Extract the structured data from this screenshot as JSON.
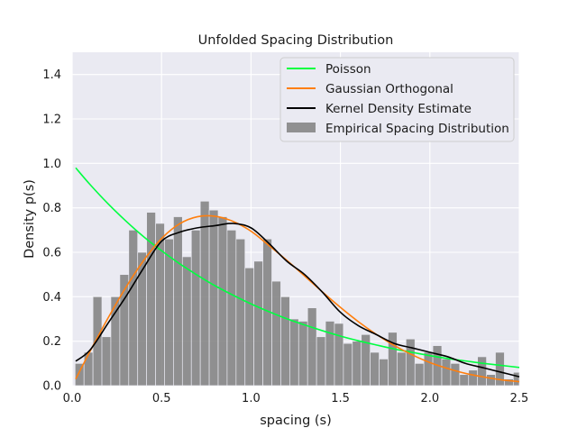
{
  "chart_data": {
    "type": "bar",
    "title": "Unfolded Spacing Distribution",
    "xlabel": "spacing (s)",
    "ylabel": "Density p(s)",
    "xlim": [
      0.0,
      2.5
    ],
    "ylim": [
      0.0,
      1.5
    ],
    "x_ticks": [
      "0.0",
      "0.5",
      "1.0",
      "1.5",
      "2.0",
      "2.5"
    ],
    "y_ticks": [
      "0.0",
      "0.2",
      "0.4",
      "0.6",
      "0.8",
      "1.0",
      "1.2",
      "1.4"
    ],
    "grid": true,
    "legend_position": "upper-right",
    "colors": {
      "poisson": "#00ff40",
      "goe": "#ff7f0e",
      "kde": "#000000",
      "histogram": "#808080",
      "plot_bg": "#eaeaf2",
      "grid": "#ffffff"
    },
    "legend": {
      "poisson": "Poisson",
      "goe": "Gaussian Orthogonal",
      "kde": "Kernel Density Estimate",
      "histogram": "Empirical Spacing Distribution"
    },
    "histogram": {
      "name": "Empirical Spacing Distribution",
      "bin_edges": [
        0.0165,
        0.0665,
        0.1165,
        0.1665,
        0.2165,
        0.2665,
        0.3165,
        0.3665,
        0.4165,
        0.4665,
        0.5165,
        0.5665,
        0.6165,
        0.6665,
        0.7165,
        0.7665,
        0.8165,
        0.8665,
        0.9165,
        0.9665,
        1.0165,
        1.0665,
        1.1165,
        1.1665,
        1.2165,
        1.2665,
        1.3165,
        1.3665,
        1.4165,
        1.4665,
        1.5165,
        1.5665,
        1.6165,
        1.6665,
        1.7165,
        1.7665,
        1.8165,
        1.8665,
        1.9165,
        1.9665,
        2.0165,
        2.0665,
        2.1165,
        2.1665,
        2.2165,
        2.2665,
        2.3165,
        2.3665,
        2.4165,
        2.4665,
        2.5165
      ],
      "values": [
        0.1,
        0.15,
        0.4,
        0.22,
        0.4,
        0.5,
        0.7,
        0.6,
        0.78,
        0.73,
        0.66,
        0.76,
        0.58,
        0.7,
        0.83,
        0.79,
        0.76,
        0.7,
        0.66,
        0.53,
        0.56,
        0.66,
        0.47,
        0.4,
        0.3,
        0.29,
        0.35,
        0.22,
        0.29,
        0.28,
        0.19,
        0.2,
        0.23,
        0.15,
        0.12,
        0.24,
        0.15,
        0.21,
        0.1,
        0.15,
        0.18,
        0.12,
        0.1,
        0.05,
        0.07,
        0.13,
        0.05,
        0.15,
        0.03,
        0.06
      ]
    },
    "series": [
      {
        "name": "Poisson",
        "x": [
          0.02,
          0.1,
          0.2,
          0.3,
          0.4,
          0.5,
          0.6,
          0.7,
          0.8,
          0.9,
          1.0,
          1.1,
          1.2,
          1.3,
          1.4,
          1.5,
          1.6,
          1.7,
          1.8,
          1.9,
          2.0,
          2.1,
          2.2,
          2.3,
          2.4,
          2.5
        ],
        "y": [
          0.98,
          0.905,
          0.819,
          0.741,
          0.67,
          0.607,
          0.549,
          0.497,
          0.449,
          0.407,
          0.368,
          0.333,
          0.301,
          0.273,
          0.247,
          0.223,
          0.202,
          0.183,
          0.165,
          0.15,
          0.135,
          0.122,
          0.111,
          0.1,
          0.091,
          0.082
        ]
      },
      {
        "name": "Gaussian Orthogonal",
        "x": [
          0.02,
          0.1,
          0.2,
          0.3,
          0.4,
          0.5,
          0.6,
          0.7,
          0.8,
          0.9,
          1.0,
          1.1,
          1.2,
          1.3,
          1.4,
          1.5,
          1.6,
          1.7,
          1.8,
          1.9,
          2.0,
          2.1,
          2.2,
          2.3,
          2.4,
          2.5
        ],
        "y": [
          0.03,
          0.154,
          0.303,
          0.441,
          0.563,
          0.662,
          0.728,
          0.76,
          0.762,
          0.739,
          0.695,
          0.631,
          0.564,
          0.493,
          0.421,
          0.352,
          0.288,
          0.231,
          0.181,
          0.139,
          0.104,
          0.077,
          0.055,
          0.039,
          0.026,
          0.018
        ]
      },
      {
        "name": "Kernel Density Estimate",
        "x": [
          0.02,
          0.1,
          0.2,
          0.3,
          0.4,
          0.5,
          0.6,
          0.7,
          0.8,
          0.9,
          1.0,
          1.1,
          1.2,
          1.3,
          1.4,
          1.5,
          1.6,
          1.7,
          1.8,
          1.9,
          2.0,
          2.1,
          2.2,
          2.3,
          2.4,
          2.5
        ],
        "y": [
          0.11,
          0.16,
          0.28,
          0.4,
          0.53,
          0.65,
          0.69,
          0.71,
          0.72,
          0.73,
          0.71,
          0.64,
          0.56,
          0.5,
          0.42,
          0.33,
          0.27,
          0.23,
          0.19,
          0.17,
          0.15,
          0.13,
          0.1,
          0.08,
          0.06,
          0.04
        ]
      }
    ]
  }
}
